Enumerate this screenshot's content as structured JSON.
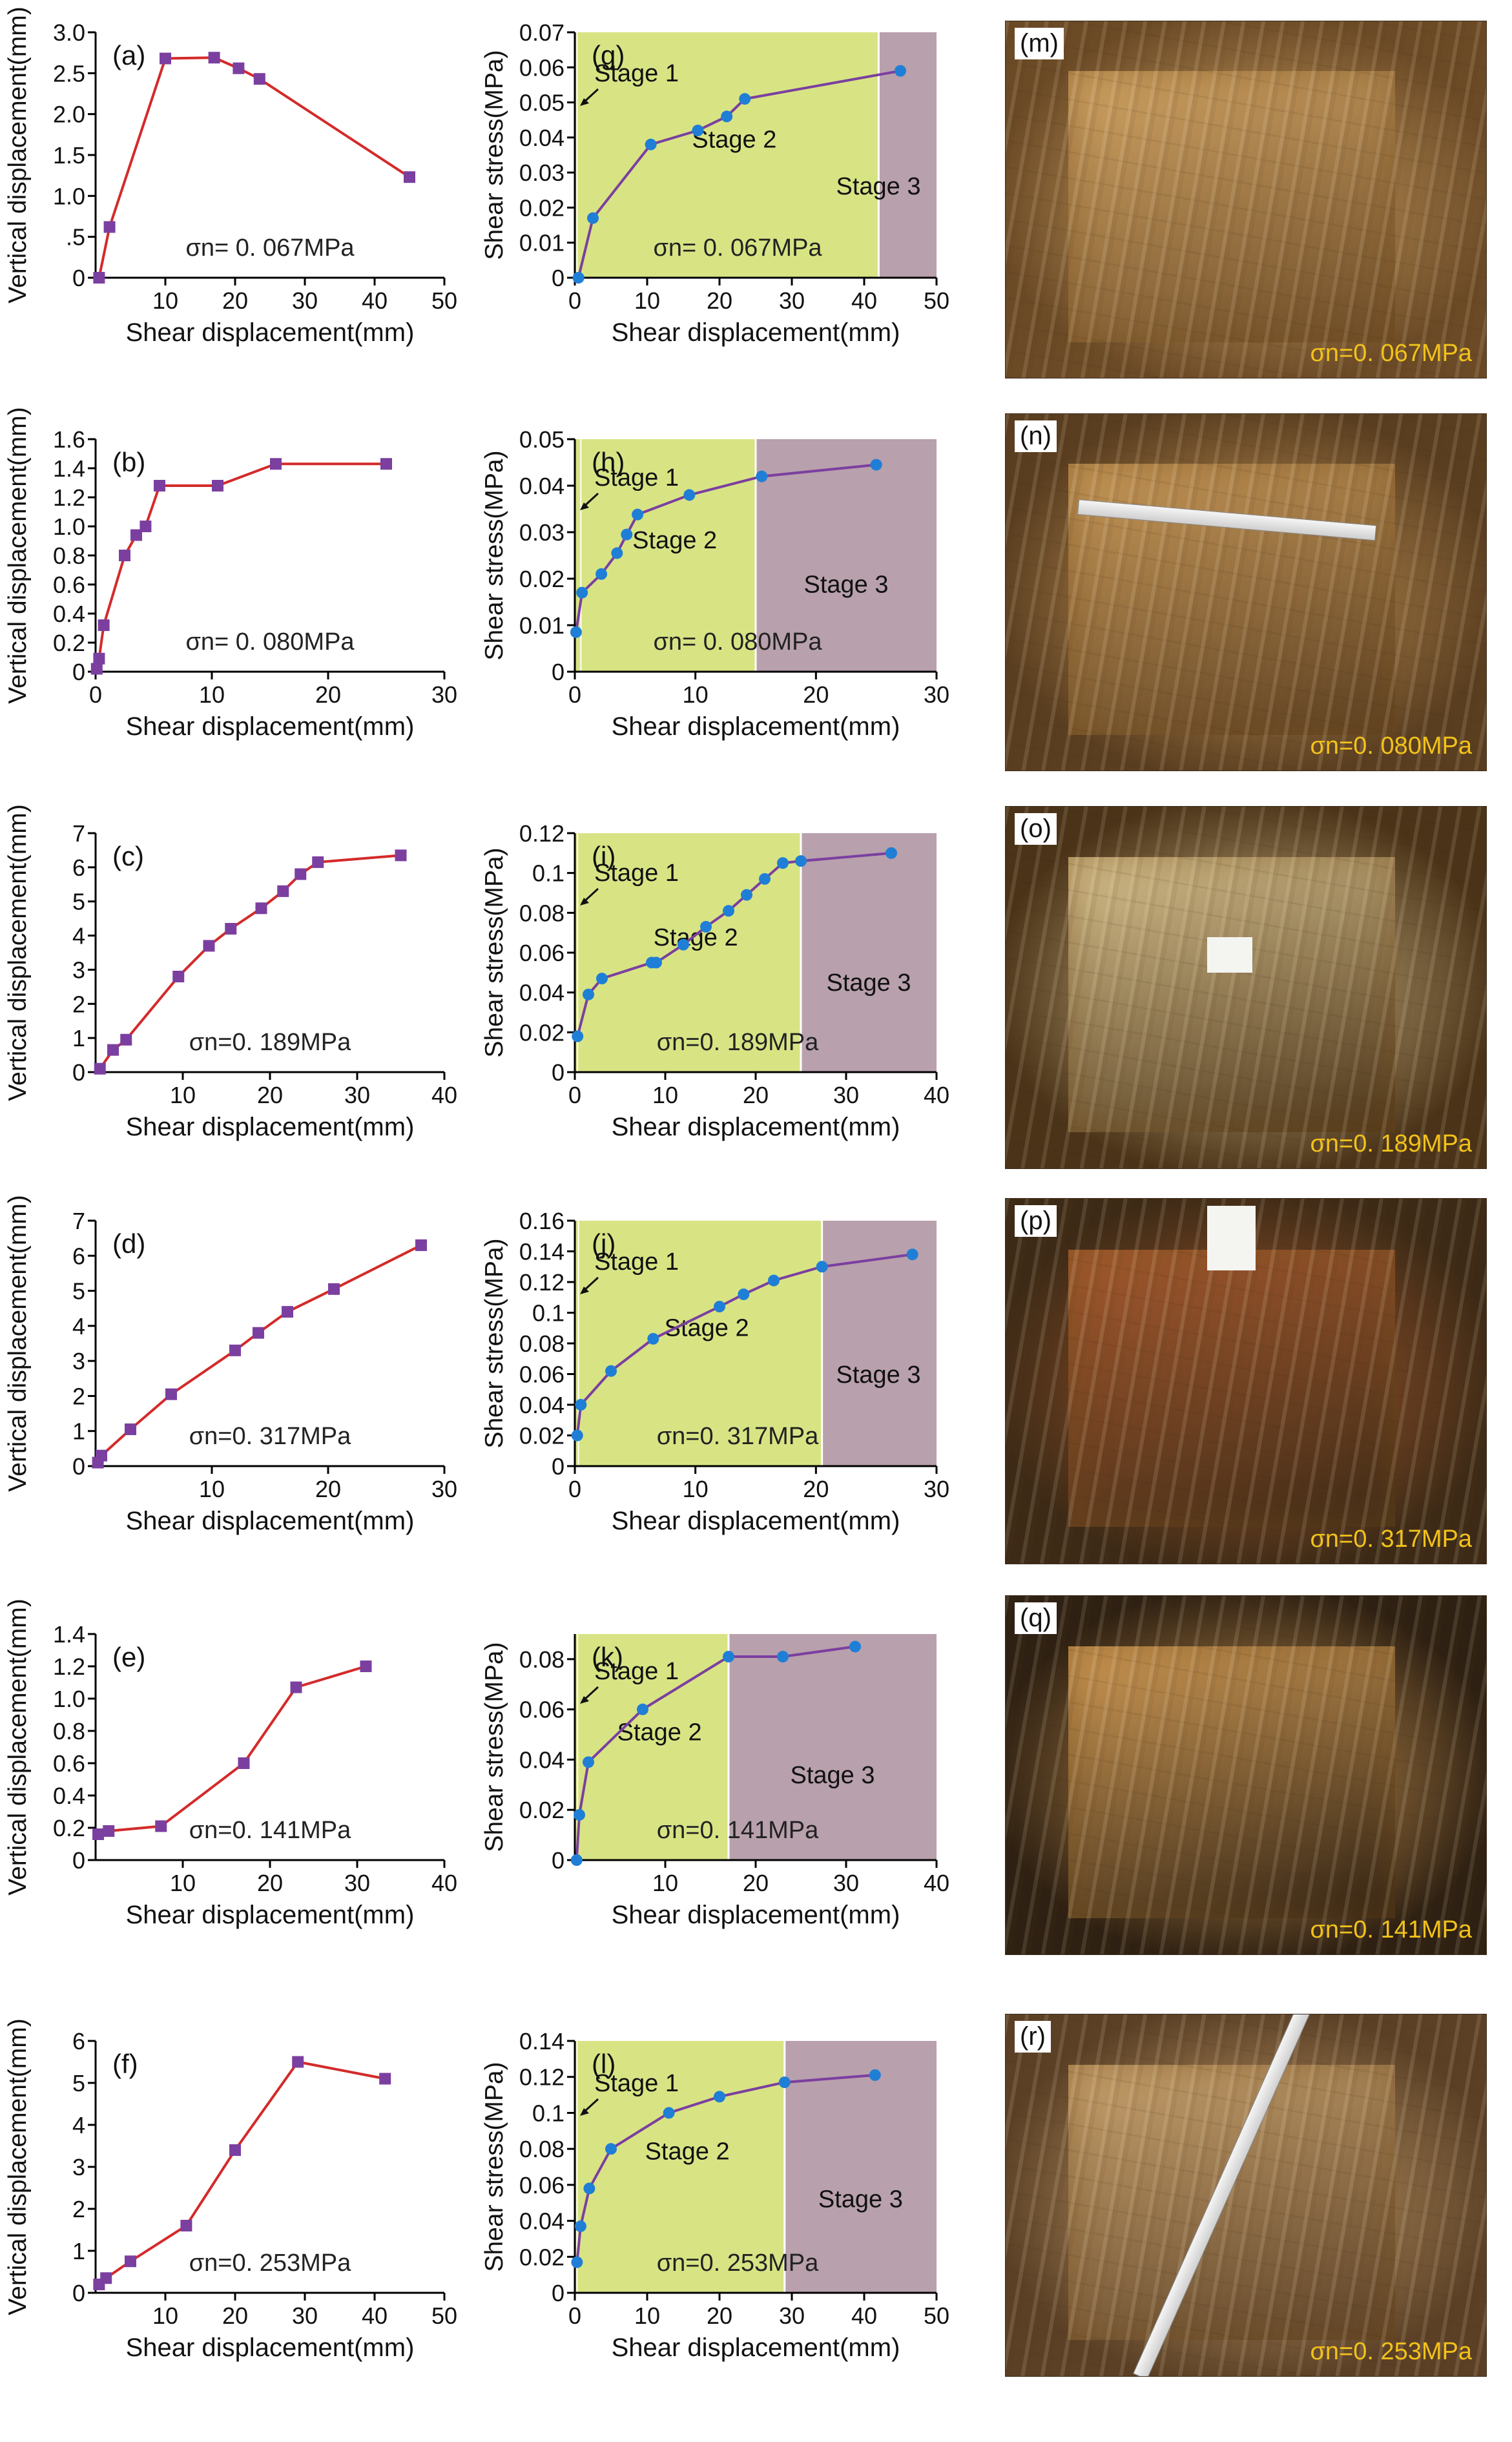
{
  "figure": {
    "colors": {
      "vertical_series": "#d42a2a",
      "vertical_marker": "#7b3fa0",
      "shear_series": "#7b3fa0",
      "shear_marker": "#1f7fd6",
      "stage_green": "#d8e484",
      "stage_purple": "#b8a0ac",
      "sigma_label": "#f2c21a"
    }
  },
  "chart_data": [
    {
      "id": "a",
      "panel_label": "(a)",
      "type": "line",
      "xlabel": "Shear displacement(mm)",
      "ylabel": "Vertical displacement(mm)",
      "xlim": [
        0,
        50
      ],
      "ylim": [
        0,
        3.0
      ],
      "xticks": [
        10,
        20,
        30,
        40,
        50
      ],
      "yticks": [
        0,
        0.5,
        1.0,
        1.5,
        2.0,
        2.5,
        3.0
      ],
      "ytick_labels": [
        "0",
        ".5",
        "1.0",
        "1.5",
        "2.0",
        "2.5",
        "3.0"
      ],
      "annotation": "σn= 0. 067MPa",
      "x": [
        0.5,
        2,
        10,
        17,
        20.5,
        23.5,
        45
      ],
      "y": [
        0,
        0.62,
        2.68,
        2.69,
        2.56,
        2.43,
        1.23
      ]
    },
    {
      "id": "g",
      "panel_label": "(g)",
      "type": "line",
      "xlabel": "Shear displacement(mm)",
      "ylabel": "Shear stress(MPa)",
      "xlim": [
        0,
        50
      ],
      "ylim": [
        0,
        0.07
      ],
      "xticks": [
        0,
        10,
        20,
        30,
        40,
        50
      ],
      "yticks": [
        0,
        0.01,
        0.02,
        0.03,
        0.04,
        0.05,
        0.06,
        0.07
      ],
      "ytick_labels": [
        "0",
        "0.01",
        "0.02",
        "0.03",
        "0.04",
        "0.05",
        "0.06",
        "0.07"
      ],
      "annotation": "σn= 0. 067MPa",
      "stages": [
        {
          "label": "Stage 1",
          "start": 0,
          "end": 0.3
        },
        {
          "label": "Stage 2",
          "start": 0.3,
          "end": 42
        },
        {
          "label": "Stage 3",
          "start": 42,
          "end": 50
        }
      ],
      "x": [
        0.5,
        2.5,
        10.5,
        17,
        21,
        23.5,
        45
      ],
      "y": [
        0,
        0.017,
        0.038,
        0.042,
        0.046,
        0.051,
        0.059
      ]
    },
    {
      "id": "b",
      "panel_label": "(b)",
      "type": "line",
      "xlabel": "Shear displacement(mm)",
      "ylabel": "Vertical displacement(mm)",
      "xlim": [
        0,
        30
      ],
      "ylim": [
        0,
        1.6
      ],
      "xticks": [
        0,
        10,
        20,
        30
      ],
      "yticks": [
        0,
        0.2,
        0.4,
        0.6,
        0.8,
        1.0,
        1.2,
        1.4,
        1.6
      ],
      "ytick_labels": [
        "0",
        "0.2",
        "0.4",
        "0.6",
        "0.8",
        "1.0",
        "1.2",
        "1.4",
        "1.6"
      ],
      "annotation": "σn= 0. 080MPa",
      "x": [
        0.1,
        0.3,
        0.7,
        2.5,
        3.5,
        4.3,
        5.5,
        10.5,
        15.5,
        25
      ],
      "y": [
        0.02,
        0.09,
        0.32,
        0.8,
        0.94,
        1.0,
        1.28,
        1.28,
        1.43,
        1.43
      ]
    },
    {
      "id": "h",
      "panel_label": "(h)",
      "type": "line",
      "xlabel": "Shear displacement(mm)",
      "ylabel": "Shear stress(MPa)",
      "xlim": [
        0,
        30
      ],
      "ylim": [
        0,
        0.05
      ],
      "xticks": [
        0,
        10,
        20,
        30
      ],
      "yticks": [
        0,
        0.01,
        0.02,
        0.03,
        0.04,
        0.05
      ],
      "ytick_labels": [
        "0",
        "0.01",
        "0.02",
        "0.03",
        "0.04",
        "0.05"
      ],
      "annotation": "σn= 0. 080MPa",
      "stages": [
        {
          "label": "Stage 1",
          "start": 0,
          "end": 0.5
        },
        {
          "label": "Stage 2",
          "start": 0.5,
          "end": 15
        },
        {
          "label": "Stage 3",
          "start": 15,
          "end": 30
        }
      ],
      "x": [
        0.1,
        0.6,
        2.2,
        3.5,
        4.3,
        5.2,
        9.5,
        15.5,
        25
      ],
      "y": [
        0.0085,
        0.017,
        0.021,
        0.0255,
        0.0295,
        0.0338,
        0.038,
        0.042,
        0.0445
      ]
    },
    {
      "id": "c",
      "panel_label": "(c)",
      "type": "line",
      "xlabel": "Shear displacement(mm)",
      "ylabel": "Vertical displacement(mm)",
      "xlim": [
        0,
        40
      ],
      "ylim": [
        0,
        7
      ],
      "xticks": [
        10,
        20,
        30,
        40
      ],
      "yticks": [
        0,
        1,
        2,
        3,
        4,
        5,
        6,
        7
      ],
      "ytick_labels": [
        "0",
        "1",
        "2",
        "3",
        "4",
        "5",
        "6",
        "7"
      ],
      "annotation": "σn=0. 189MPa",
      "x": [
        0.5,
        2,
        3.5,
        9.5,
        13,
        15.5,
        19,
        21.5,
        23.5,
        25.5,
        35
      ],
      "y": [
        0.1,
        0.65,
        0.95,
        2.8,
        3.7,
        4.2,
        4.8,
        5.3,
        5.8,
        6.15,
        6.35
      ]
    },
    {
      "id": "i",
      "panel_label": "(i)",
      "type": "line",
      "xlabel": "Shear displacement(mm)",
      "ylabel": "Shear stress(MPa)",
      "xlim": [
        0,
        40
      ],
      "ylim": [
        0,
        0.12
      ],
      "xticks": [
        0,
        10,
        20,
        30,
        40
      ],
      "yticks": [
        0,
        0.02,
        0.04,
        0.06,
        0.08,
        0.1,
        0.12
      ],
      "ytick_labels": [
        "0",
        "0.02",
        "0.04",
        "0.06",
        "0.08",
        "0.1",
        "0.12"
      ],
      "annotation": "σn=0. 189MPa",
      "stages": [
        {
          "label": "Stage 1",
          "start": 0,
          "end": 0.3
        },
        {
          "label": "Stage 2",
          "start": 0.3,
          "end": 25
        },
        {
          "label": "Stage 3",
          "start": 25,
          "end": 40
        }
      ],
      "x": [
        0.3,
        1.5,
        3,
        8.5,
        9,
        12,
        14.5,
        17,
        19,
        21,
        23,
        25,
        35
      ],
      "y": [
        0.018,
        0.039,
        0.047,
        0.055,
        0.055,
        0.064,
        0.073,
        0.081,
        0.089,
        0.097,
        0.105,
        0.106,
        0.11
      ]
    },
    {
      "id": "d",
      "panel_label": "(d)",
      "type": "line",
      "xlabel": "Shear displacement(mm)",
      "ylabel": "Vertical displacement(mm)",
      "xlim": [
        0,
        30
      ],
      "ylim": [
        0,
        7
      ],
      "xticks": [
        10,
        20,
        30
      ],
      "yticks": [
        0,
        1,
        2,
        3,
        4,
        5,
        6,
        7
      ],
      "ytick_labels": [
        "0",
        "1",
        "2",
        "3",
        "4",
        "5",
        "6",
        "7"
      ],
      "annotation": "σn=0. 317MPa",
      "x": [
        0.2,
        0.5,
        3,
        6.5,
        12,
        14,
        16.5,
        20.5,
        28
      ],
      "y": [
        0.1,
        0.3,
        1.05,
        2.05,
        3.3,
        3.8,
        4.4,
        5.05,
        6.3
      ]
    },
    {
      "id": "j",
      "panel_label": "(j)",
      "type": "line",
      "xlabel": "Shear displacement(mm)",
      "ylabel": "Shear stress(MPa)",
      "xlim": [
        0,
        30
      ],
      "ylim": [
        0,
        0.16
      ],
      "xticks": [
        0,
        10,
        20,
        30
      ],
      "yticks": [
        0,
        0.02,
        0.04,
        0.06,
        0.08,
        0.1,
        0.12,
        0.14,
        0.16
      ],
      "ytick_labels": [
        "0",
        "0.02",
        "0.04",
        "0.06",
        "0.08",
        "0.1",
        "0.12",
        "0.14",
        "0.16"
      ],
      "annotation": "σn=0. 317MPa",
      "stages": [
        {
          "label": "Stage 1",
          "start": 0,
          "end": 0.3
        },
        {
          "label": "Stage 2",
          "start": 0.3,
          "end": 20.5
        },
        {
          "label": "Stage 3",
          "start": 20.5,
          "end": 30
        }
      ],
      "x": [
        0.2,
        0.5,
        3,
        6.5,
        12,
        14,
        16.5,
        20.5,
        28
      ],
      "y": [
        0.02,
        0.04,
        0.062,
        0.083,
        0.104,
        0.112,
        0.121,
        0.13,
        0.138
      ]
    },
    {
      "id": "e",
      "panel_label": "(e)",
      "type": "line",
      "xlabel": "Shear displacement(mm)",
      "ylabel": "Vertical displacement(mm)",
      "xlim": [
        0,
        40
      ],
      "ylim": [
        0,
        1.4
      ],
      "xticks": [
        10,
        20,
        30,
        40
      ],
      "yticks": [
        0,
        0.2,
        0.4,
        0.6,
        0.8,
        1.0,
        1.2,
        1.4
      ],
      "ytick_labels": [
        "0",
        "0.2",
        "0.4",
        "0.6",
        "0.8",
        "1.0",
        "1.2",
        "1.4"
      ],
      "annotation": "σn=0. 141MPa",
      "x": [
        0.3,
        1.5,
        7.5,
        17,
        23,
        31
      ],
      "y": [
        0.16,
        0.18,
        0.21,
        0.6,
        1.07,
        1.2
      ]
    },
    {
      "id": "k",
      "panel_label": "(k)",
      "type": "line",
      "xlabel": "Shear displacement(mm)",
      "ylabel": "Shear stress(MPa)",
      "xlim": [
        0,
        40
      ],
      "ylim": [
        0,
        0.09
      ],
      "xticks": [
        10,
        20,
        30,
        40
      ],
      "yticks": [
        0,
        0.02,
        0.04,
        0.06,
        0.08
      ],
      "ytick_labels": [
        "0",
        "0.02",
        "0.04",
        "0.06",
        "0.08"
      ],
      "annotation": "σn=0. 141MPa",
      "stages": [
        {
          "label": "Stage 1",
          "start": 0,
          "end": 0.3
        },
        {
          "label": "Stage 2",
          "start": 0.3,
          "end": 17
        },
        {
          "label": "Stage 3",
          "start": 17,
          "end": 40
        }
      ],
      "x": [
        0.2,
        0.5,
        1.5,
        7.5,
        17,
        23,
        31
      ],
      "y": [
        0.0,
        0.018,
        0.039,
        0.06,
        0.081,
        0.081,
        0.085
      ]
    },
    {
      "id": "f",
      "panel_label": "(f)",
      "type": "line",
      "xlabel": "Shear displacement(mm)",
      "ylabel": "Vertical displacement(mm)",
      "xlim": [
        0,
        50
      ],
      "ylim": [
        0,
        6
      ],
      "xticks": [
        10,
        20,
        30,
        40,
        50
      ],
      "yticks": [
        0,
        1,
        2,
        3,
        4,
        5,
        6
      ],
      "ytick_labels": [
        "0",
        "1",
        "2",
        "3",
        "4",
        "5",
        "6"
      ],
      "annotation": "σn=0. 253MPa",
      "x": [
        0.5,
        1.5,
        5,
        13,
        20,
        29,
        41.5
      ],
      "y": [
        0.2,
        0.35,
        0.75,
        1.6,
        3.4,
        5.5,
        5.1
      ]
    },
    {
      "id": "l",
      "panel_label": "(l)",
      "type": "line",
      "xlabel": "Shear displacement(mm)",
      "ylabel": "Shear stress(MPa)",
      "xlim": [
        0,
        50
      ],
      "ylim": [
        0,
        0.14
      ],
      "xticks": [
        0,
        10,
        20,
        30,
        40,
        50
      ],
      "yticks": [
        0,
        0.02,
        0.04,
        0.06,
        0.08,
        0.1,
        0.12,
        0.14
      ],
      "ytick_labels": [
        "0",
        "0.02",
        "0.04",
        "0.06",
        "0.08",
        "0.1",
        "0.12",
        "0.14"
      ],
      "annotation": "σn=0. 253MPa",
      "stages": [
        {
          "label": "Stage 1",
          "start": 0,
          "end": 0.3
        },
        {
          "label": "Stage 2",
          "start": 0.3,
          "end": 29
        },
        {
          "label": "Stage 3",
          "start": 29,
          "end": 50
        }
      ],
      "x": [
        0.3,
        0.8,
        2,
        5,
        13,
        20,
        29,
        41.5
      ],
      "y": [
        0.017,
        0.037,
        0.058,
        0.08,
        0.1,
        0.109,
        0.117,
        0.121
      ]
    }
  ],
  "photos": [
    {
      "id": "m",
      "label": "(m)",
      "sigma": "σn=0. 067MPa",
      "bg": "#6b4a26",
      "block": "#d2a565",
      "tape": false,
      "tag": false
    },
    {
      "id": "n",
      "label": "(n)",
      "sigma": "σn=0. 080MPa",
      "bg": "#5a3e20",
      "block": "#c99a5a",
      "tape": true,
      "tag": false
    },
    {
      "id": "o",
      "label": "(o)",
      "sigma": "σn=0. 189MPa",
      "bg": "#4a3318",
      "block": "#d8c28e",
      "tape": false,
      "tag": true
    },
    {
      "id": "p",
      "label": "(p)",
      "sigma": "σn=0. 317MPa",
      "bg": "#3d2a16",
      "block": "#a55a2e",
      "tape": false,
      "tag": true
    },
    {
      "id": "q",
      "label": "(q)",
      "sigma": "σn=0. 141MPa",
      "bg": "#2e2012",
      "block": "#cf9a55",
      "tape": false,
      "tag": false
    },
    {
      "id": "r",
      "label": "(r)",
      "sigma": "σn=0. 253MPa",
      "bg": "#5b4026",
      "block": "#c9a36e",
      "tape": true,
      "tag": false
    }
  ]
}
